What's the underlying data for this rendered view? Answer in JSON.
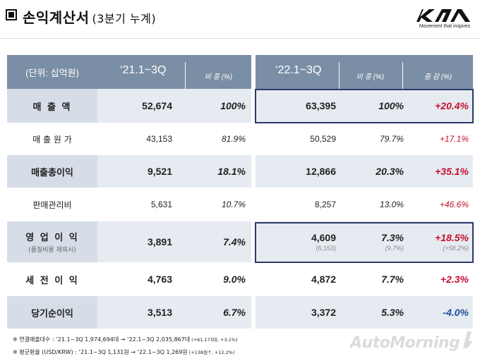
{
  "header": {
    "title": "손익계산서",
    "subtitle": "(3분기 누계)",
    "tagline": "Movement that inspires"
  },
  "table": {
    "unit_label": "(단위: 십억원)",
    "period_prev": "‘21.1~3Q",
    "period_curr": "‘22.1~3Q",
    "ratio_label": "비 중 (%)",
    "change_label": "증 감 (%)",
    "rows": [
      {
        "label": "매 출 액",
        "v21": "52,674",
        "r21": "100%",
        "v22": "63,395",
        "r22": "100%",
        "chg": "+20.4%"
      },
      {
        "label": "매 출 원 가",
        "v21": "43,153",
        "r21": "81.9%",
        "v22": "50,529",
        "r22": "79.7%",
        "chg": "+17.1%"
      },
      {
        "label": "매출총이익",
        "v21": "9,521",
        "r21": "18.1%",
        "v22": "12,866",
        "r22": "20.3%",
        "chg": "+35.1%"
      },
      {
        "label": "판매관리비",
        "v21": "5,631",
        "r21": "10.7%",
        "v22": "8,257",
        "r22": "13.0%",
        "chg": "+46.6%"
      },
      {
        "label": "영 업 이 익",
        "note": "(품질비용 제외시)",
        "v21": "3,891",
        "r21": "7.4%",
        "v22": "4,609",
        "v22_sub": "(6,153)",
        "r22": "7.3%",
        "r22_sub": "(9.7%)",
        "chg": "+18.5%",
        "chg_sub": "(+58.2%)"
      },
      {
        "label": "세 전 이 익",
        "v21": "4,763",
        "r21": "9.0%",
        "v22": "4,872",
        "r22": "7.7%",
        "chg": "+2.3%"
      },
      {
        "label": "당기순이익",
        "v21": "3,513",
        "r21": "6.7%",
        "v22": "3,372",
        "r22": "5.3%",
        "chg": "-4.0%"
      }
    ]
  },
  "footnotes": {
    "line1_main": "※  연결매출대수 : ‘21.1~3Q 1,974,694대  →  ‘22.1~3Q 2,035,867대",
    "line1_small": " (+61,173대, +3.1%)",
    "line2_main": "※  평균환율 (USD/KRW) : ‘21.1~3Q 1,131원  →  ‘22.1~3Q 1,269원",
    "line2_small": " (+138원↑, +12.2%)"
  },
  "watermark": "AutoMorning",
  "colors": {
    "header_band": "#7a8ea5",
    "highlight_outline": "#2b3a6b",
    "increase": "#c8102e",
    "decrease": "#1f4ea0"
  }
}
